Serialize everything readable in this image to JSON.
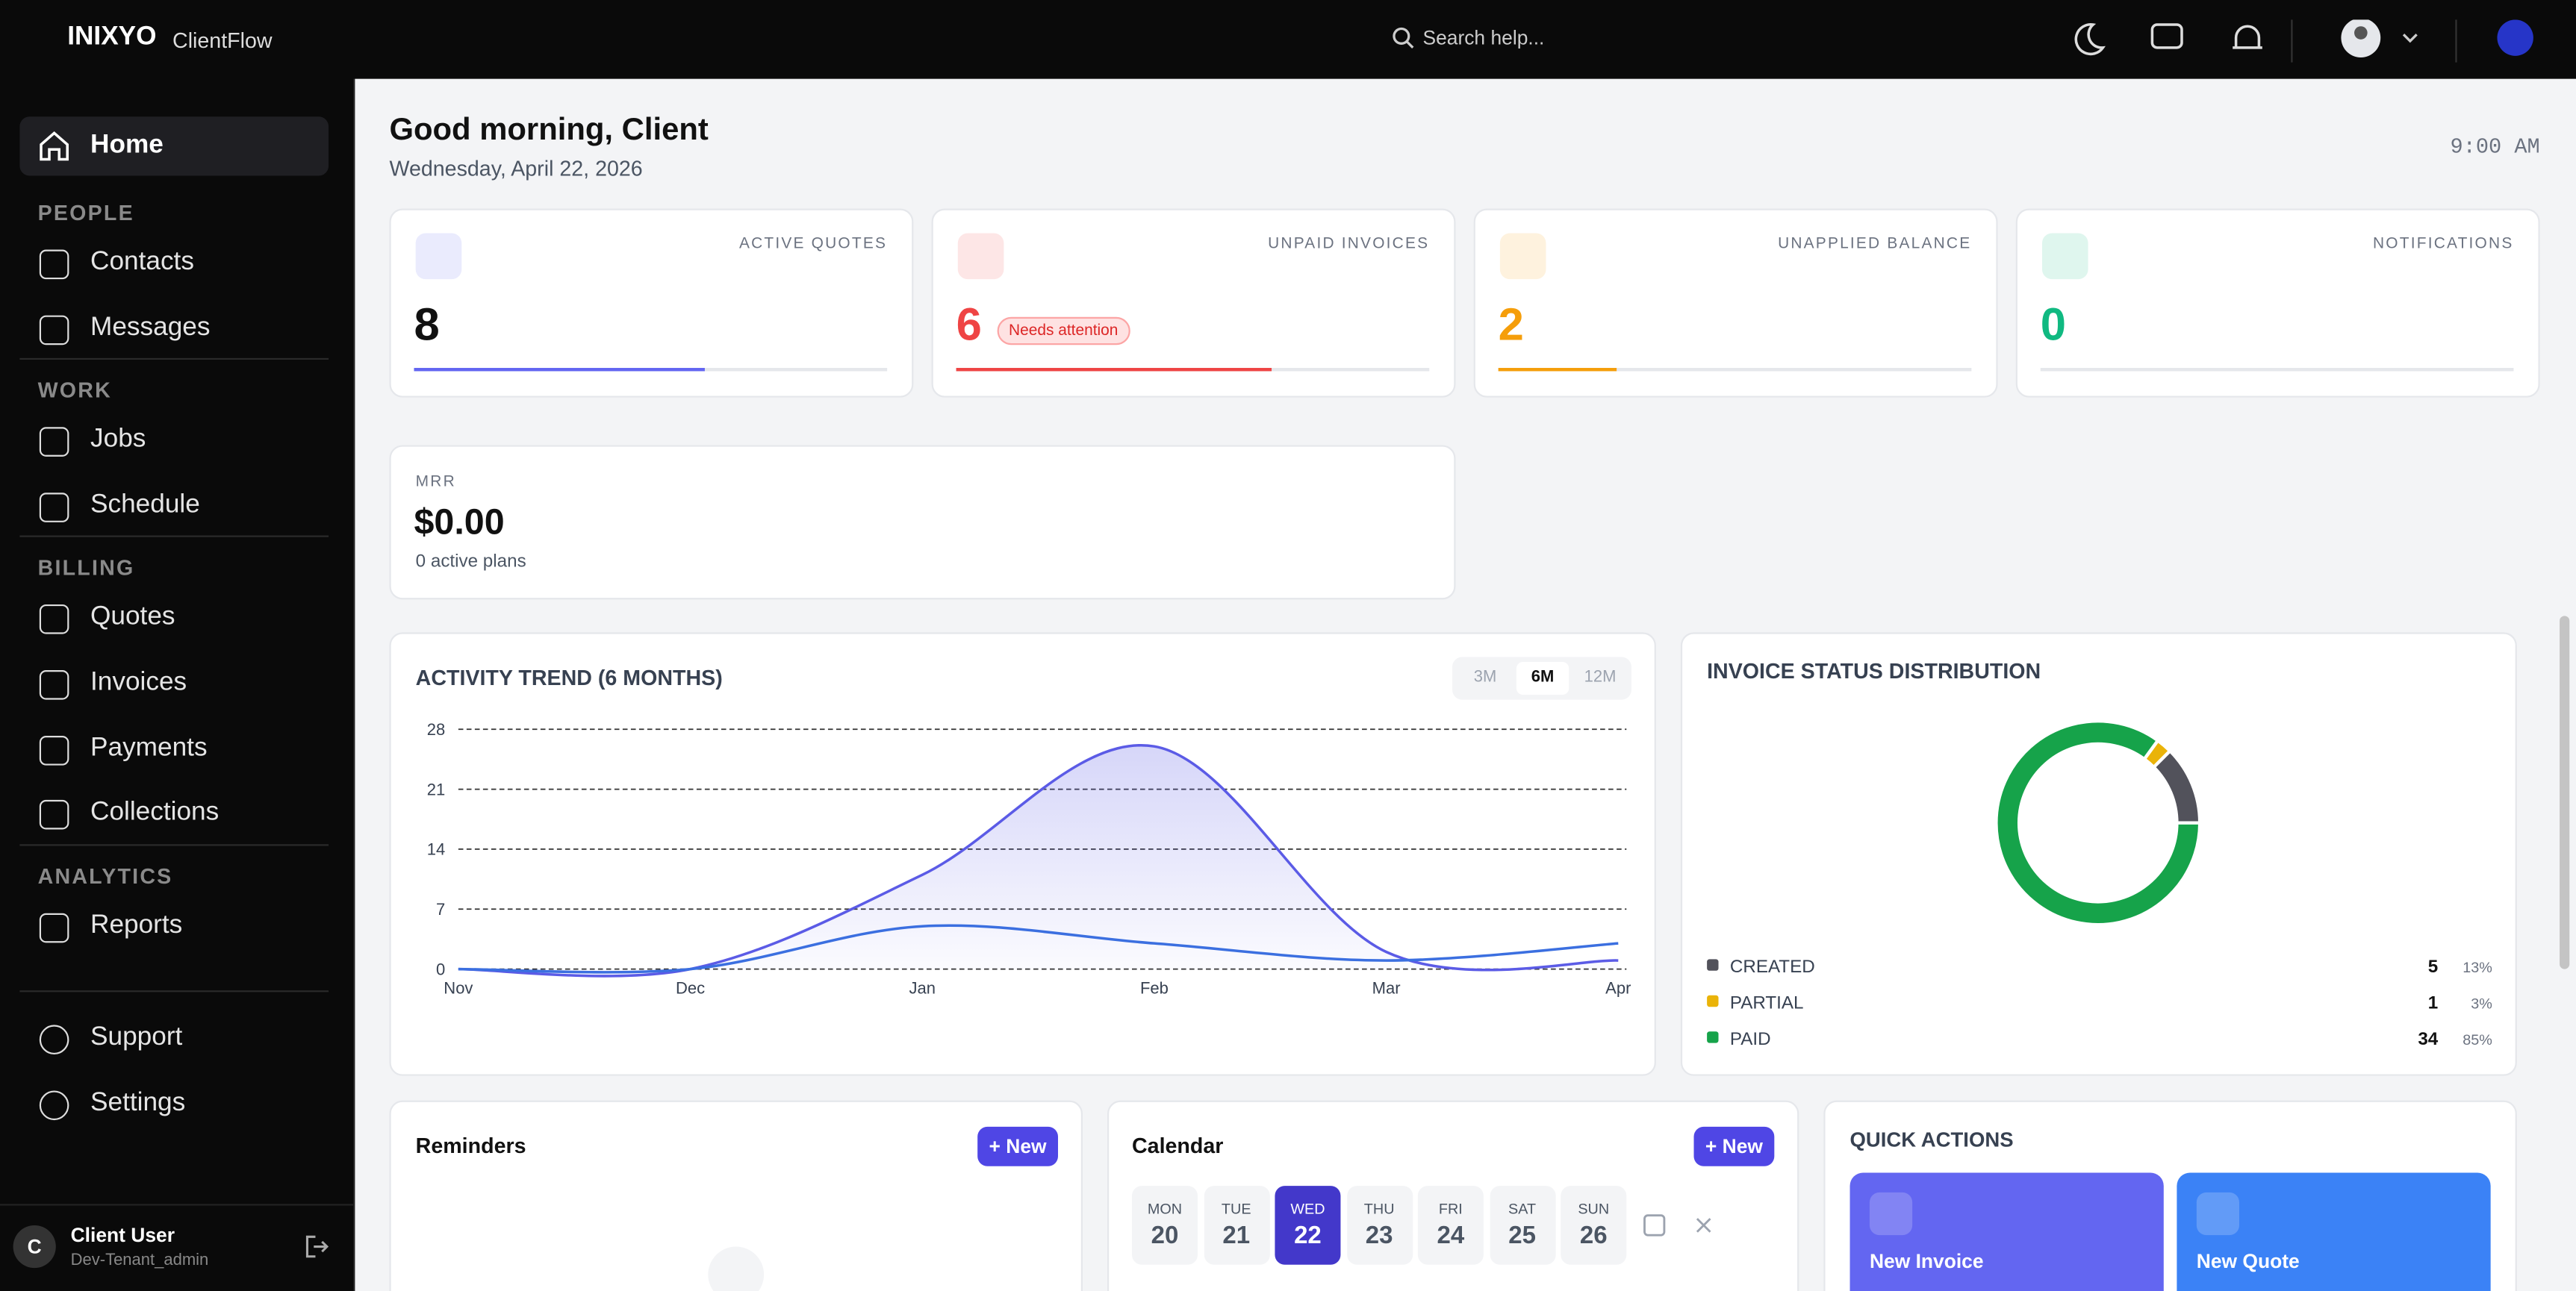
{
  "brand": {
    "logo": "INIXYO",
    "product": "ClientFlow"
  },
  "search": {
    "placeholder": "Search help..."
  },
  "sidebar": {
    "home": "Home",
    "sections": [
      {
        "title": "PEOPLE",
        "items": [
          "Contacts",
          "Messages"
        ]
      },
      {
        "title": "WORK",
        "items": [
          "Jobs",
          "Schedule"
        ]
      },
      {
        "title": "BILLING",
        "items": [
          "Quotes",
          "Invoices",
          "Payments",
          "Collections"
        ]
      },
      {
        "title": "ANALYTICS",
        "items": [
          "Reports"
        ]
      }
    ],
    "footer_items": [
      "Support",
      "Settings"
    ],
    "user": {
      "initial": "C",
      "name": "Client User",
      "role": "Dev-Tenant_admin"
    }
  },
  "header": {
    "greeting": "Good morning, Client",
    "date": "Wednesday, April 22, 2026",
    "time": "9:00 AM"
  },
  "kpis": [
    {
      "label": "ACTIVE QUOTES",
      "value": 8,
      "color": "#6366f1"
    },
    {
      "label": "UNPAID INVOICES",
      "value": 6,
      "badge": "Needs attention",
      "color": "#ef4444"
    },
    {
      "label": "UNAPPLIED BALANCE",
      "value": 2,
      "color": "#f59e0b"
    },
    {
      "label": "NOTIFICATIONS",
      "value": 0,
      "color": "#10b981"
    }
  ],
  "mrr": {
    "label": "MRR",
    "value": "$0.00",
    "note": "0 active plans"
  },
  "activity_chart": {
    "type": "line",
    "title": "ACTIVITY TREND (6 MONTHS)",
    "ranges": [
      "3M",
      "6M",
      "12M"
    ],
    "selected_range": 1,
    "categories": [
      "Nov",
      "Dec",
      "Jan",
      "Feb",
      "Mar",
      "Apr"
    ],
    "series": [
      {
        "color": "#5b5be6",
        "fill": true,
        "values": [
          0,
          0,
          11,
          26,
          2,
          1
        ]
      },
      {
        "color": "#3b6fe0",
        "values": [
          0,
          0,
          5,
          3,
          1,
          3
        ]
      }
    ],
    "ylim": [
      0,
      28
    ],
    "yticks": [
      0,
      7,
      14,
      21,
      28
    ],
    "grid": true
  },
  "invoice_status": {
    "type": "pie",
    "donut": true,
    "title": "INVOICE STATUS DISTRIBUTION",
    "categories": [
      "CREATED",
      "PARTIAL",
      "PAID"
    ],
    "values": [
      5,
      1,
      34
    ],
    "percent_labels": [
      "13%",
      "3%",
      "85%"
    ],
    "colors": [
      "#52525b",
      "#eab308",
      "#16a34a"
    ]
  },
  "reminders": {
    "title": "Reminders",
    "button": "+ New"
  },
  "calendar": {
    "title": "Calendar",
    "button": "+ New",
    "selected": 2,
    "days": [
      {
        "name": "MON",
        "date": 20
      },
      {
        "name": "TUE",
        "date": 21
      },
      {
        "name": "WED",
        "date": 22
      },
      {
        "name": "THU",
        "date": 23
      },
      {
        "name": "FRI",
        "date": 24
      },
      {
        "name": "SAT",
        "date": 25
      },
      {
        "name": "SUN",
        "date": 26
      }
    ]
  },
  "quick_actions": {
    "title": "QUICK ACTIONS",
    "items": [
      "New Invoice",
      "New Quote"
    ]
  }
}
